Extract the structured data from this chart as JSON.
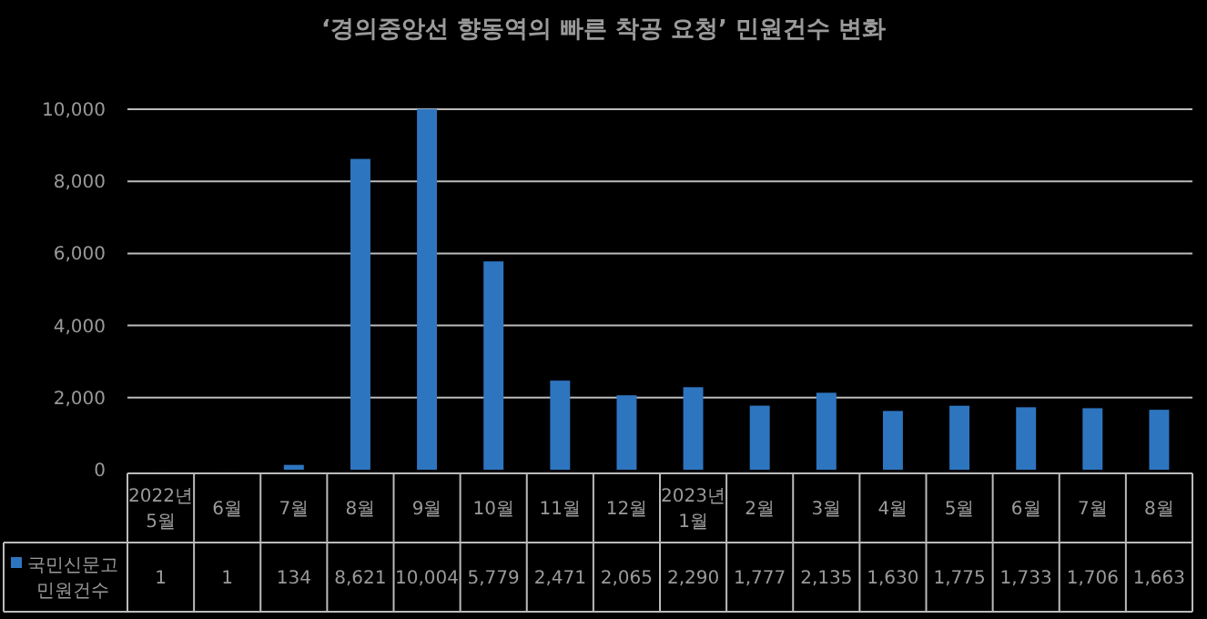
{
  "chart_data": {
    "type": "bar",
    "title": "‘경의중앙선 향동역의 빠른 착공 요청’ 민원건수 변화",
    "categories": [
      "2022년\n5월",
      "6월",
      "7월",
      "8월",
      "9월",
      "10월",
      "11월",
      "12월",
      "2023년\n1월",
      "2월",
      "3월",
      "4월",
      "5월",
      "6월",
      "7월",
      "8월"
    ],
    "series": [
      {
        "name": "국민신문고\n민원건수",
        "color": "#2e75c0",
        "values": [
          1,
          1,
          134,
          8621,
          10004,
          5779,
          2471,
          2065,
          2290,
          1777,
          2135,
          1630,
          1775,
          1733,
          1706,
          1663
        ],
        "value_labels": [
          "1",
          "1",
          "134",
          "8,621",
          "10,004",
          "5,779",
          "2,471",
          "2,065",
          "2,290",
          "1,777",
          "2,135",
          "1,630",
          "1,775",
          "1,733",
          "1,706",
          "1,663"
        ]
      }
    ],
    "ylim": [
      0,
      10050
    ],
    "yticks": [
      {
        "value": 0,
        "label": "0"
      },
      {
        "value": 2000,
        "label": "2,000"
      },
      {
        "value": 4000,
        "label": "4,000"
      },
      {
        "value": 6000,
        "label": "6,000"
      },
      {
        "value": 8000,
        "label": "8,000"
      },
      {
        "value": 10000,
        "label": "10,000"
      }
    ],
    "grid": "y",
    "legend": "left"
  }
}
